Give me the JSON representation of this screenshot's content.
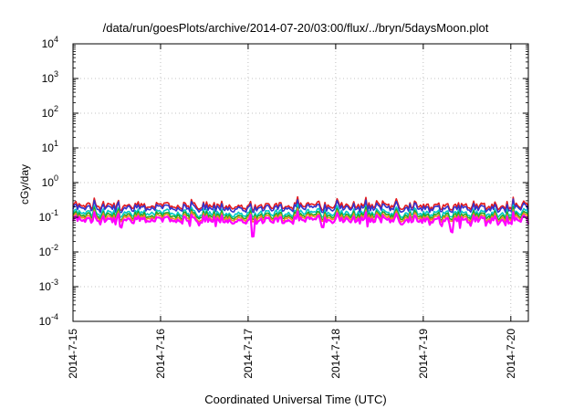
{
  "chart_data": {
    "type": "line",
    "title": "/data/run/goesPlots/archive/2014-07-20/03:00/flux/../bryn/5daysMoon.plot",
    "xlabel": "Coordinated Universal Time (UTC)",
    "ylabel": "cGy/day",
    "y_scale": "log",
    "ylim_exponents": [
      -4,
      4
    ],
    "y_tick_labels": [
      {
        "base": "10",
        "exp": "4"
      },
      {
        "base": "10",
        "exp": "3"
      },
      {
        "base": "10",
        "exp": "2"
      },
      {
        "base": "10",
        "exp": "1"
      },
      {
        "base": "10",
        "exp": "0"
      },
      {
        "base": "10",
        "exp": "-1"
      },
      {
        "base": "10",
        "exp": "-2"
      },
      {
        "base": "10",
        "exp": "-3"
      },
      {
        "base": "10",
        "exp": "-4"
      }
    ],
    "x_tick_labels": [
      "2014-7-15",
      "2014-7-16",
      "2014-7-17",
      "2014-7-18",
      "2014-7-19",
      "2014-7-20"
    ],
    "xlim_days": [
      0,
      5.2
    ],
    "grid": true,
    "grid_style": "dotted",
    "legend": "none",
    "series": [
      {
        "color": "#e41a1c",
        "base_value": 0.22
      },
      {
        "color": "#3333cc",
        "base_value": 0.19
      },
      {
        "color": "#00c8c8",
        "base_value": 0.135
      },
      {
        "color": "#22aa22",
        "base_value": 0.115
      },
      {
        "color": "#ee8822",
        "base_value": 0.1
      },
      {
        "color": "#ff00ff",
        "base_value": 0.085
      }
    ],
    "notable_dips": [
      {
        "day": 0.55,
        "value": 0.055
      },
      {
        "day": 1.83,
        "value": 0.07
      },
      {
        "day": 2.05,
        "value": 0.03
      },
      {
        "day": 2.85,
        "value": 0.055
      },
      {
        "day": 3.75,
        "value": 0.065
      },
      {
        "day": 4.33,
        "value": 0.04
      },
      {
        "day": 4.72,
        "value": 0.06
      }
    ]
  }
}
